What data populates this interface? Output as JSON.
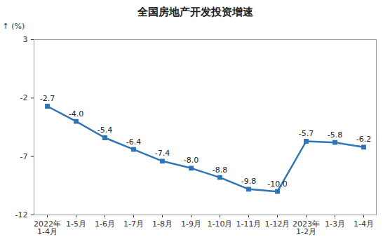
{
  "chart_data": {
    "type": "line",
    "title": "全国房地产开发投资增速",
    "y_label": "(%)",
    "categories": [
      "2022年\n1-4月",
      "1-5月",
      "1-6月",
      "1-7月",
      "1-8月",
      "1-9月",
      "1-10月",
      "1-11月",
      "1-12月",
      "2023年\n1-2月",
      "1-3月",
      "1-4月"
    ],
    "values": [
      -2.7,
      -4.0,
      -5.4,
      -6.4,
      -7.4,
      -8.0,
      -8.8,
      -9.8,
      -10.0,
      -5.7,
      -5.8,
      -6.2
    ],
    "value_labels": [
      "-2.7",
      "-4.0",
      "-5.4",
      "-6.4",
      "-7.4",
      "-8.0",
      "-8.8",
      "-9.8",
      "-10.0",
      "-5.7",
      "-5.8",
      "-6.2"
    ],
    "color": "#2e75b6",
    "marker": "square",
    "line_style": "solid",
    "ylim": [
      -12,
      3
    ],
    "yticks": [
      -12,
      -7,
      -2,
      3
    ],
    "grid": false,
    "data_labels": true
  }
}
